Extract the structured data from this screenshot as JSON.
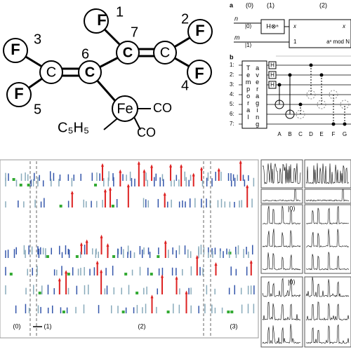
{
  "molecule": {
    "fluorines": [
      "F",
      "F",
      "F",
      "F",
      "F"
    ],
    "numbers": [
      "1",
      "2",
      "3",
      "4",
      "5",
      "6",
      "7"
    ],
    "carbons": [
      "C",
      "C",
      "C",
      "C"
    ],
    "iron": "Fe",
    "carbonyls": [
      "CO",
      "CO"
    ],
    "ring": "C₅H₅"
  },
  "circuit_a": {
    "label": "a",
    "stages": [
      "(0)",
      "(1)",
      "(2)"
    ],
    "registers": [
      "n",
      "m"
    ],
    "inputs": [
      "|0⟩",
      "|1⟩"
    ],
    "gate": "H⊗ⁿ",
    "outputs_left": [
      "x",
      "1"
    ],
    "outputs_right": [
      "x",
      "aˣ mod N"
    ]
  },
  "circuit_b": {
    "label": "b",
    "qubits": [
      "1:",
      "2:",
      "3:",
      "4:",
      "5:",
      "6:",
      "7:"
    ],
    "averaging": [
      "Temporal",
      "averaging"
    ],
    "hadamards": [
      "H",
      "H",
      "H"
    ],
    "steps": [
      "A",
      "B",
      "C",
      "D",
      "E",
      "F",
      "G"
    ]
  },
  "pulse_panel": {
    "stages": [
      "(0)",
      "(1)",
      "(2)",
      "(3)"
    ]
  },
  "spectra": {
    "state_labels": [
      "|0⟩",
      "|0⟩"
    ]
  }
}
